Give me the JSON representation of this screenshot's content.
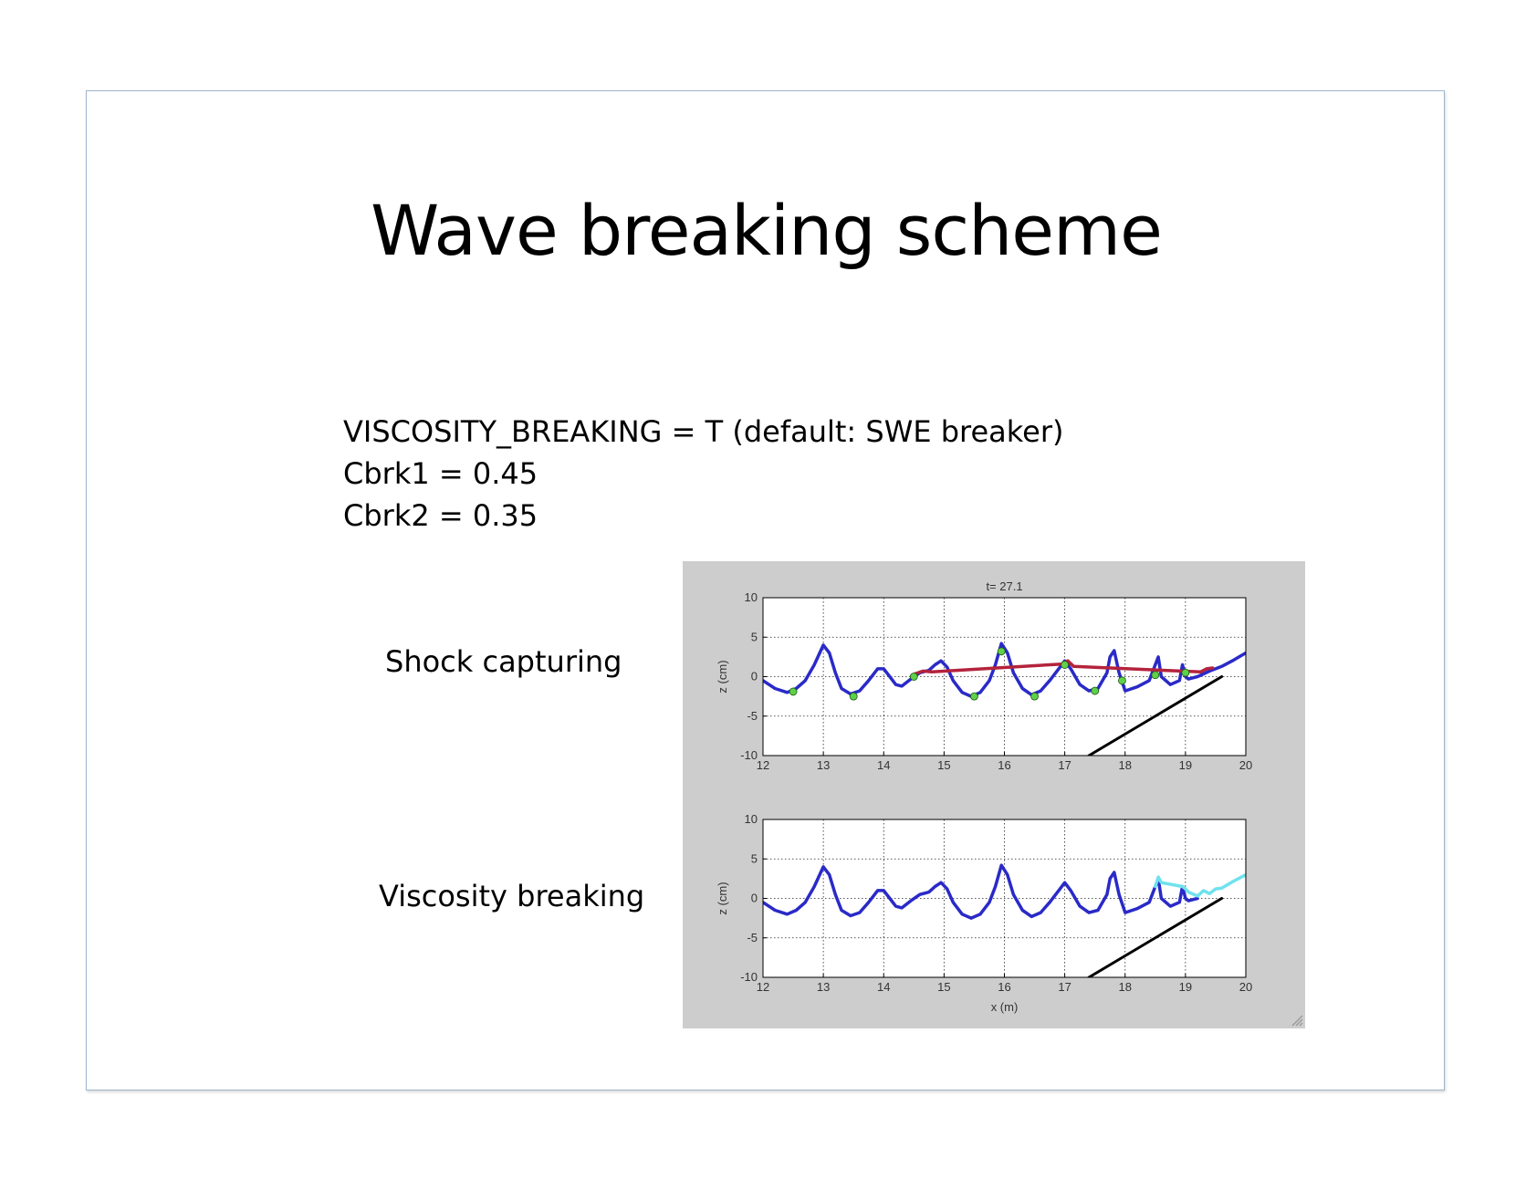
{
  "slide": {
    "title": "Wave breaking scheme",
    "params": [
      "VISCOSITY_BREAKING = T (default: SWE breaker)",
      "Cbrk1 = 0.45",
      "Cbrk2 = 0.35"
    ],
    "panel_labels": [
      "Shock capturing",
      "Viscosity breaking"
    ]
  },
  "chart_data": [
    {
      "type": "line",
      "title": "t= 27.1",
      "xlabel": "",
      "ylabel": "z (cm)",
      "xlim": [
        12,
        20
      ],
      "ylim": [
        -10,
        10
      ],
      "xticks": [
        12,
        13,
        14,
        15,
        16,
        17,
        18,
        19,
        20
      ],
      "yticks": [
        10,
        5,
        0,
        -5,
        -10
      ],
      "grid": true,
      "series": [
        {
          "color": "#2a2ac8",
          "x": [
            12.0,
            12.2,
            12.4,
            12.55,
            12.7,
            12.85,
            13.0,
            13.1,
            13.2,
            13.3,
            13.45,
            13.6,
            13.75,
            13.9,
            14.0,
            14.1,
            14.2,
            14.3,
            14.45,
            14.6,
            14.75,
            14.85,
            14.95,
            15.05,
            15.15,
            15.3,
            15.45,
            15.6,
            15.75,
            15.85,
            15.95,
            16.05,
            16.15,
            16.3,
            16.45,
            16.6,
            16.75,
            16.9,
            17.0,
            17.1,
            17.25,
            17.4,
            17.55,
            17.7,
            17.75,
            17.82,
            17.9,
            18.0,
            18.2,
            18.4,
            18.5,
            18.55,
            18.6,
            18.75,
            18.9,
            18.95,
            19.0,
            19.05,
            19.2,
            19.4,
            19.6,
            19.8,
            20.0
          ],
          "y": [
            -0.5,
            -1.5,
            -2.0,
            -1.5,
            -0.5,
            1.5,
            4.0,
            3.0,
            0.5,
            -1.5,
            -2.2,
            -1.8,
            -0.5,
            1.0,
            1.0,
            0.0,
            -1.0,
            -1.2,
            -0.3,
            0.5,
            0.8,
            1.5,
            2.0,
            1.2,
            -0.5,
            -2.0,
            -2.5,
            -2.0,
            -0.5,
            1.5,
            4.2,
            3.0,
            0.5,
            -1.5,
            -2.3,
            -1.8,
            -0.5,
            1.0,
            2.0,
            1.0,
            -1.0,
            -1.8,
            -1.5,
            0.5,
            2.5,
            3.3,
            0.5,
            -1.8,
            -1.3,
            -0.5,
            1.5,
            2.5,
            0.0,
            -1.0,
            -0.5,
            1.5,
            0.0,
            -0.3,
            0.0,
            0.7,
            1.3,
            2.1,
            3.0
          ]
        },
        {
          "color": "#b4233c",
          "x": [
            14.5,
            14.65,
            14.8,
            16.95,
            17.05,
            17.15,
            19.25,
            19.35,
            19.45
          ],
          "y": [
            0.3,
            0.7,
            0.6,
            1.6,
            2.0,
            1.3,
            0.6,
            1.0,
            1.1
          ]
        },
        {
          "color": "#5fd04a",
          "markers_only": true,
          "x": [
            12.5,
            13.5,
            14.5,
            15.5,
            15.95,
            16.5,
            17.0,
            17.5,
            17.95,
            18.5,
            19.0
          ],
          "y": [
            -1.9,
            -2.5,
            0.0,
            -2.5,
            3.2,
            -2.5,
            1.5,
            -1.8,
            -0.5,
            0.2,
            0.5
          ]
        },
        {
          "color": "#000000",
          "x": [
            17.4,
            19.6
          ],
          "y": [
            -10.0,
            0.0
          ]
        }
      ]
    },
    {
      "type": "line",
      "title": "",
      "xlabel": "x (m)",
      "ylabel": "z (cm)",
      "xlim": [
        12,
        20
      ],
      "ylim": [
        -10,
        10
      ],
      "xticks": [
        12,
        13,
        14,
        15,
        16,
        17,
        18,
        19,
        20
      ],
      "yticks": [
        10,
        5,
        0,
        -5,
        -10
      ],
      "grid": true,
      "series": [
        {
          "color": "#2a2ac8",
          "x": [
            12.0,
            12.2,
            12.4,
            12.55,
            12.7,
            12.85,
            13.0,
            13.1,
            13.2,
            13.3,
            13.45,
            13.6,
            13.75,
            13.9,
            14.0,
            14.1,
            14.2,
            14.3,
            14.45,
            14.6,
            14.75,
            14.85,
            14.95,
            15.05,
            15.15,
            15.3,
            15.45,
            15.6,
            15.75,
            15.85,
            15.95,
            16.05,
            16.15,
            16.3,
            16.45,
            16.6,
            16.75,
            16.9,
            17.0,
            17.1,
            17.25,
            17.4,
            17.55,
            17.7,
            17.75,
            17.82,
            17.9,
            18.0,
            18.2,
            18.4,
            18.5,
            18.55,
            18.6,
            18.75,
            18.9,
            18.95,
            19.0,
            19.05,
            19.2
          ],
          "y": [
            -0.5,
            -1.5,
            -2.0,
            -1.5,
            -0.5,
            1.5,
            4.0,
            3.0,
            0.5,
            -1.5,
            -2.2,
            -1.8,
            -0.5,
            1.0,
            1.0,
            0.0,
            -1.0,
            -1.2,
            -0.3,
            0.5,
            0.8,
            1.5,
            2.0,
            1.2,
            -0.5,
            -2.0,
            -2.5,
            -2.0,
            -0.5,
            1.5,
            4.2,
            3.0,
            0.5,
            -1.5,
            -2.3,
            -1.8,
            -0.5,
            1.0,
            2.0,
            1.0,
            -1.0,
            -1.8,
            -1.5,
            0.5,
            2.5,
            3.3,
            0.5,
            -1.8,
            -1.3,
            -0.5,
            1.5,
            2.5,
            0.0,
            -1.0,
            -0.5,
            1.5,
            0.0,
            -0.3,
            0.0
          ]
        },
        {
          "color": "#6fe2ee",
          "x": [
            18.5,
            18.55,
            18.6,
            18.95,
            19.0,
            19.05,
            19.2,
            19.3,
            19.4,
            19.5,
            19.6,
            19.8,
            20.0
          ],
          "y": [
            1.5,
            2.7,
            2.0,
            1.5,
            1.2,
            0.8,
            0.3,
            1.0,
            0.6,
            1.2,
            1.3,
            2.2,
            3.0
          ]
        },
        {
          "color": "#000000",
          "x": [
            17.4,
            19.6
          ],
          "y": [
            -10.0,
            0.0
          ]
        }
      ]
    }
  ]
}
